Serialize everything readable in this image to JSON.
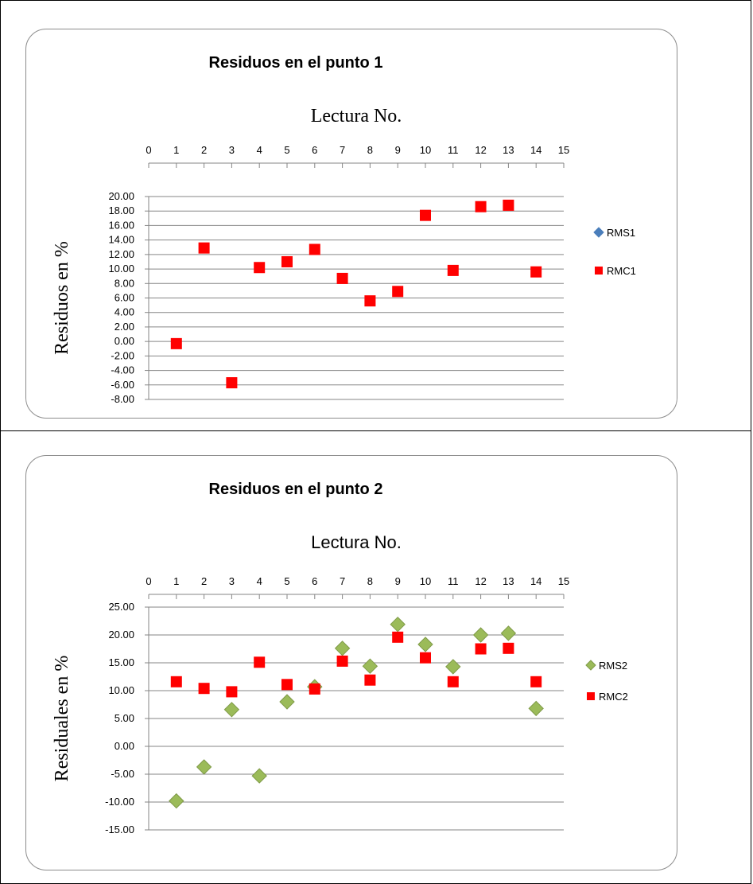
{
  "chart_data": [
    {
      "type": "scatter",
      "title": "Residuos en el punto 1",
      "xlabel": "Lectura No.",
      "ylabel": "Residuos  en  %",
      "xlim": [
        0,
        15
      ],
      "ylim": [
        -8,
        20
      ],
      "x_ticks": [
        "0",
        "1",
        "2",
        "3",
        "4",
        "5",
        "6",
        "7",
        "8",
        "9",
        "10",
        "11",
        "12",
        "13",
        "14",
        "15"
      ],
      "y_ticks": [
        "20.00",
        "18.00",
        "16.00",
        "14.00",
        "12.00",
        "10.00",
        "8.00",
        "6.00",
        "4.00",
        "2.00",
        "0.00",
        "-2.00",
        "-4.00",
        "-6.00",
        "-8.00"
      ],
      "legend_position": "right",
      "grid": true,
      "series": [
        {
          "name": "RMS1",
          "marker": "diamond",
          "color": "#4a7ebb",
          "x": [],
          "y": []
        },
        {
          "name": "RMC1",
          "marker": "square",
          "color": "#ff0000",
          "x": [
            1,
            2,
            3,
            4,
            5,
            6,
            7,
            8,
            9,
            10,
            11,
            12,
            13,
            14
          ],
          "y": [
            -0.3,
            12.9,
            -5.7,
            10.2,
            11.0,
            12.7,
            8.7,
            5.6,
            6.9,
            17.4,
            9.8,
            18.6,
            18.8,
            9.6
          ]
        }
      ]
    },
    {
      "type": "scatter",
      "title": "Residuos en el punto 2",
      "xlabel": "Lectura No.",
      "ylabel": "Residuales  en  %",
      "xlim": [
        0,
        15
      ],
      "ylim": [
        -15,
        25
      ],
      "x_ticks": [
        "0",
        "1",
        "2",
        "3",
        "4",
        "5",
        "6",
        "7",
        "8",
        "9",
        "10",
        "11",
        "12",
        "13",
        "14",
        "15"
      ],
      "y_ticks": [
        "25.00",
        "20.00",
        "15.00",
        "10.00",
        "5.00",
        "0.00",
        "-5.00",
        "-10.00",
        "-15.00"
      ],
      "legend_position": "right",
      "grid": true,
      "series": [
        {
          "name": "RMS2",
          "marker": "diamond",
          "color": "#9bbb59",
          "x": [
            1,
            2,
            3,
            4,
            5,
            6,
            7,
            8,
            9,
            10,
            11,
            12,
            13,
            14
          ],
          "y": [
            -9.8,
            -3.7,
            6.6,
            -5.3,
            8.0,
            10.7,
            17.6,
            14.4,
            21.9,
            18.3,
            14.3,
            20.0,
            20.3,
            6.8
          ]
        },
        {
          "name": "RMC2",
          "marker": "square",
          "color": "#ff0000",
          "x": [
            1,
            2,
            3,
            4,
            5,
            6,
            7,
            8,
            9,
            10,
            11,
            12,
            13,
            14
          ],
          "y": [
            11.6,
            10.4,
            9.8,
            15.1,
            11.1,
            10.3,
            15.3,
            11.9,
            19.6,
            15.9,
            11.6,
            17.5,
            17.6,
            11.6
          ]
        }
      ]
    }
  ]
}
